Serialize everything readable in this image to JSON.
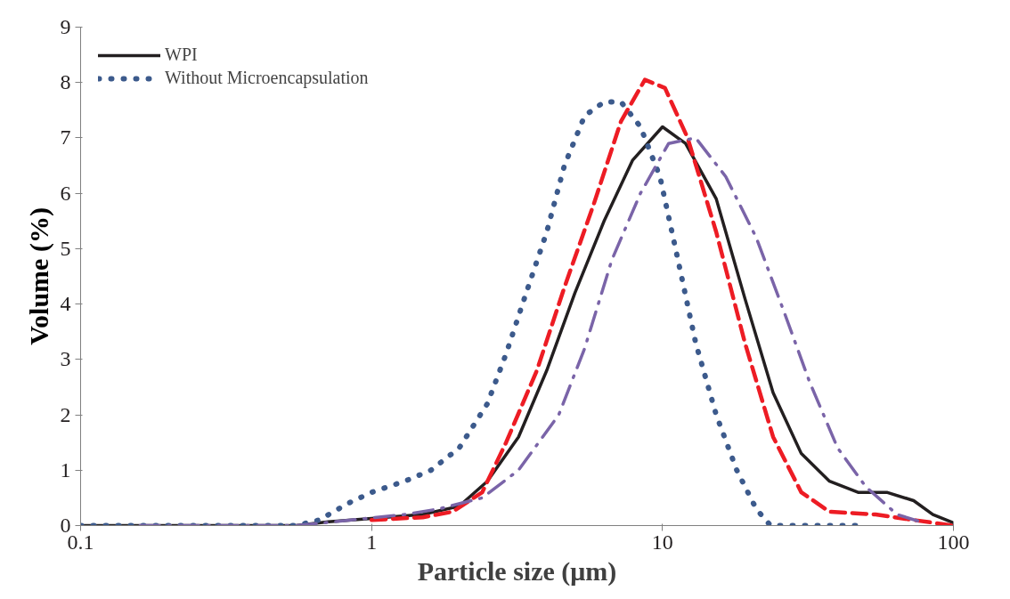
{
  "chart_data": {
    "type": "line",
    "xlabel": "Particle size (μm)",
    "ylabel": "Volume (%)",
    "log": "x",
    "xlim": [
      0.1,
      100
    ],
    "xticks": [
      0.1,
      1,
      10,
      100
    ],
    "ylim": [
      0,
      9
    ],
    "yticks": [
      0,
      1,
      2,
      3,
      4,
      5,
      6,
      7,
      8,
      9
    ],
    "grid": false,
    "legend": "top left",
    "series": [
      {
        "name": "WPI",
        "color": "#231f20",
        "line_style": "solid",
        "x": [
          0.1,
          0.55,
          0.71,
          1,
          1.5,
          2.0,
          2.5,
          3.2,
          4.0,
          5.0,
          6.3,
          7.9,
          10,
          12,
          15.3,
          19.2,
          24,
          30,
          37.5,
          47,
          59,
          73,
          85,
          100
        ],
        "values": [
          0,
          0,
          0.07,
          0.13,
          0.2,
          0.35,
          0.8,
          1.6,
          2.8,
          4.2,
          5.5,
          6.6,
          7.2,
          6.9,
          5.9,
          4.1,
          2.4,
          1.3,
          0.8,
          0.6,
          0.6,
          0.45,
          0.2,
          0.05
        ]
      },
      {
        "name": "Without Microencapsulation",
        "color": "#3c5a8c",
        "line_style": "dotted",
        "x": [
          0.1,
          0.55,
          0.66,
          0.83,
          1,
          1.3,
          1.6,
          2.0,
          2.5,
          2.9,
          3.4,
          4.0,
          4.6,
          5.4,
          6.3,
          7.2,
          8.4,
          9.8,
          11.3,
          13,
          15.3,
          18,
          21,
          23.5,
          47
        ],
        "values": [
          0,
          0,
          0.1,
          0.4,
          0.6,
          0.8,
          1.0,
          1.4,
          2.2,
          3.1,
          4.2,
          5.3,
          6.5,
          7.4,
          7.65,
          7.65,
          7.2,
          6.3,
          4.8,
          3.3,
          2.0,
          1.0,
          0.3,
          0,
          0
        ]
      },
      {
        "color": "#ed1c24",
        "line_style": "dashed",
        "x": [
          1,
          1.5,
          1.9,
          2.4,
          2.9,
          3.7,
          4.6,
          5.8,
          7.2,
          8.7,
          10.2,
          12.2,
          15.3,
          19.2,
          24,
          30,
          37.5,
          54,
          73,
          100
        ],
        "values": [
          0.1,
          0.15,
          0.25,
          0.6,
          1.5,
          2.8,
          4.3,
          5.8,
          7.3,
          8.05,
          7.9,
          7.0,
          5.3,
          3.3,
          1.6,
          0.6,
          0.25,
          0.2,
          0.1,
          0
        ]
      },
      {
        "color": "#7a64a8",
        "line_style": "dashdot",
        "x": [
          0.16,
          0.55,
          1.3,
          1.7,
          2.4,
          3.2,
          4.4,
          5.4,
          6.7,
          8.4,
          10.5,
          13,
          16.5,
          21,
          26,
          32,
          40,
          50,
          64,
          79
        ],
        "values": [
          0,
          0,
          0.2,
          0.3,
          0.5,
          1.0,
          2.0,
          3.2,
          4.8,
          6.0,
          6.9,
          7.0,
          6.3,
          5.2,
          3.9,
          2.6,
          1.4,
          0.7,
          0.2,
          0.05
        ]
      }
    ]
  }
}
